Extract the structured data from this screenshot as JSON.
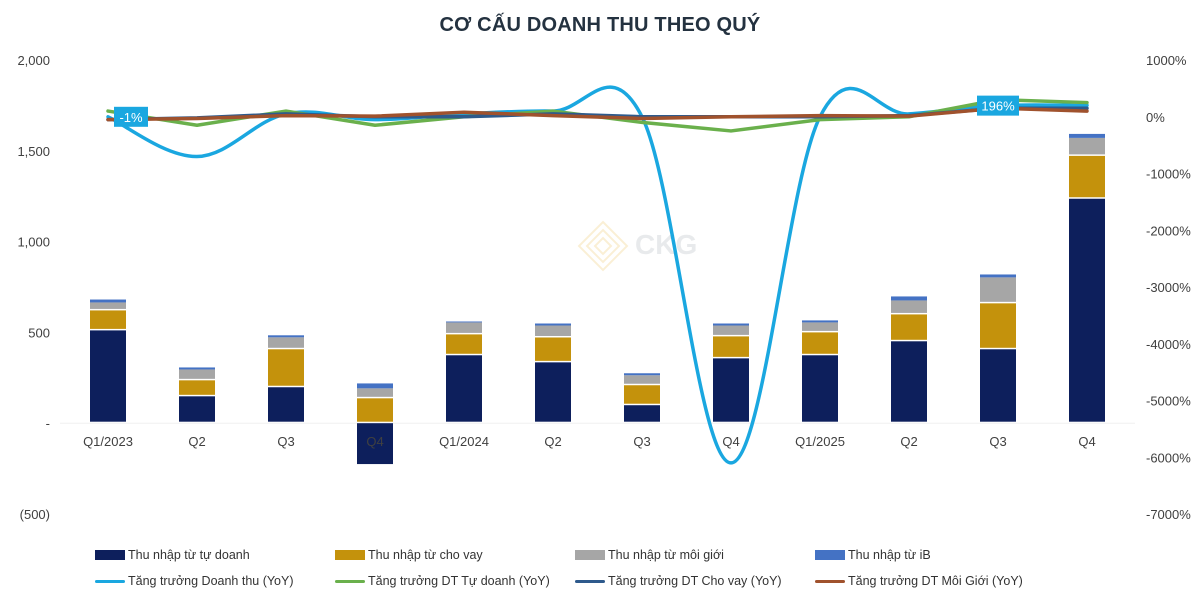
{
  "title": "CƠ CẤU DOANH THU THEO QUÝ",
  "chart_data": {
    "type": "bar+line",
    "title": "CƠ CẤU DOANH THU THEO QUÝ",
    "categories": [
      "Q1/2023",
      "Q2",
      "Q3",
      "Q4",
      "Q1/2024",
      "Q2",
      "Q3",
      "Q4",
      "Q1/2025",
      "Q2",
      "Q3",
      "Q4"
    ],
    "y_left": {
      "ticks": [
        "2,000",
        "1,500",
        "1,000",
        "500",
        "-",
        "(500)"
      ],
      "range": [
        -500,
        2000
      ]
    },
    "y_right": {
      "ticks": [
        "1000%",
        "0%",
        "-1000%",
        "-2000%",
        "-3000%",
        "-4000%",
        "-5000%",
        "-6000%",
        "-7000%"
      ],
      "range": [
        -7000,
        1000
      ]
    },
    "bar_series": [
      {
        "name": "Thu nhập từ tự doanh",
        "color": "#0d1f5c",
        "values": [
          511,
          148,
          198,
          -225,
          374,
          335,
          99,
          357,
          374,
          451,
          407,
          1236
        ]
      },
      {
        "name": "Thu nhập từ cho vay",
        "color": "#c4920c",
        "values": [
          110,
          88,
          209,
          137,
          115,
          137,
          110,
          121,
          126,
          148,
          253,
          236
        ]
      },
      {
        "name": "Thu nhập từ môi giới",
        "color": "#a6a6a6",
        "values": [
          44,
          60,
          66,
          55,
          66,
          66,
          55,
          60,
          55,
          77,
          143,
          99
        ]
      },
      {
        "name": "Thu nhập từ iB",
        "color": "#4472c4",
        "values": [
          16,
          11,
          11,
          27,
          5,
          11,
          11,
          11,
          11,
          22,
          16,
          22
        ]
      }
    ],
    "line_series": [
      {
        "name": "Tăng trưởng Doanh thu (YoY)",
        "color": "#1aa7e0",
        "axis": "right",
        "values": [
          -1,
          -700,
          50,
          -50,
          50,
          100,
          0,
          -6100,
          0,
          50,
          196,
          200
        ]
      },
      {
        "name": "Tăng trưởng DT Tự doanh (YoY)",
        "color": "#6ab04c",
        "axis": "right",
        "values": [
          100,
          -150,
          100,
          -150,
          0,
          100,
          -100,
          -250,
          -50,
          0,
          300,
          250
        ]
      },
      {
        "name": "Tăng trưởng DT Cho vay (YoY)",
        "color": "#2e5a8c",
        "axis": "right",
        "values": [
          -50,
          -20,
          50,
          0,
          0,
          50,
          0,
          0,
          0,
          20,
          150,
          150
        ]
      },
      {
        "name": "Tăng trưởng DT Môi Giới (YoY)",
        "color": "#a0522d",
        "axis": "right",
        "values": [
          -50,
          -30,
          20,
          10,
          80,
          20,
          -30,
          0,
          20,
          10,
          150,
          100
        ]
      }
    ],
    "annotations": [
      {
        "category_index": 0,
        "series": "Tăng trưởng Doanh thu (YoY)",
        "label": "-1%"
      },
      {
        "category_index": 10,
        "series": "Tăng trưởng Doanh thu (YoY)",
        "label": "196%"
      }
    ],
    "legend_position": "bottom",
    "grid": false
  },
  "watermark": {
    "text": "CKG"
  },
  "legend": {
    "row1": [
      {
        "label": "Thu nhập từ tự doanh",
        "color": "#0d1f5c"
      },
      {
        "label": "Thu nhập từ cho vay",
        "color": "#c4920c"
      },
      {
        "label": "Thu nhập từ môi giới",
        "color": "#a6a6a6"
      },
      {
        "label": "Thu nhập từ iB",
        "color": "#4472c4"
      }
    ],
    "row2": [
      {
        "label": "Tăng trưởng Doanh thu (YoY)",
        "color": "#1aa7e0"
      },
      {
        "label": "Tăng trưởng DT Tự doanh (YoY)",
        "color": "#6ab04c"
      },
      {
        "label": "Tăng trưởng DT Cho vay (YoY)",
        "color": "#2e5a8c"
      },
      {
        "label": "Tăng trưởng DT Môi Giới (YoY)",
        "color": "#a0522d"
      }
    ]
  }
}
